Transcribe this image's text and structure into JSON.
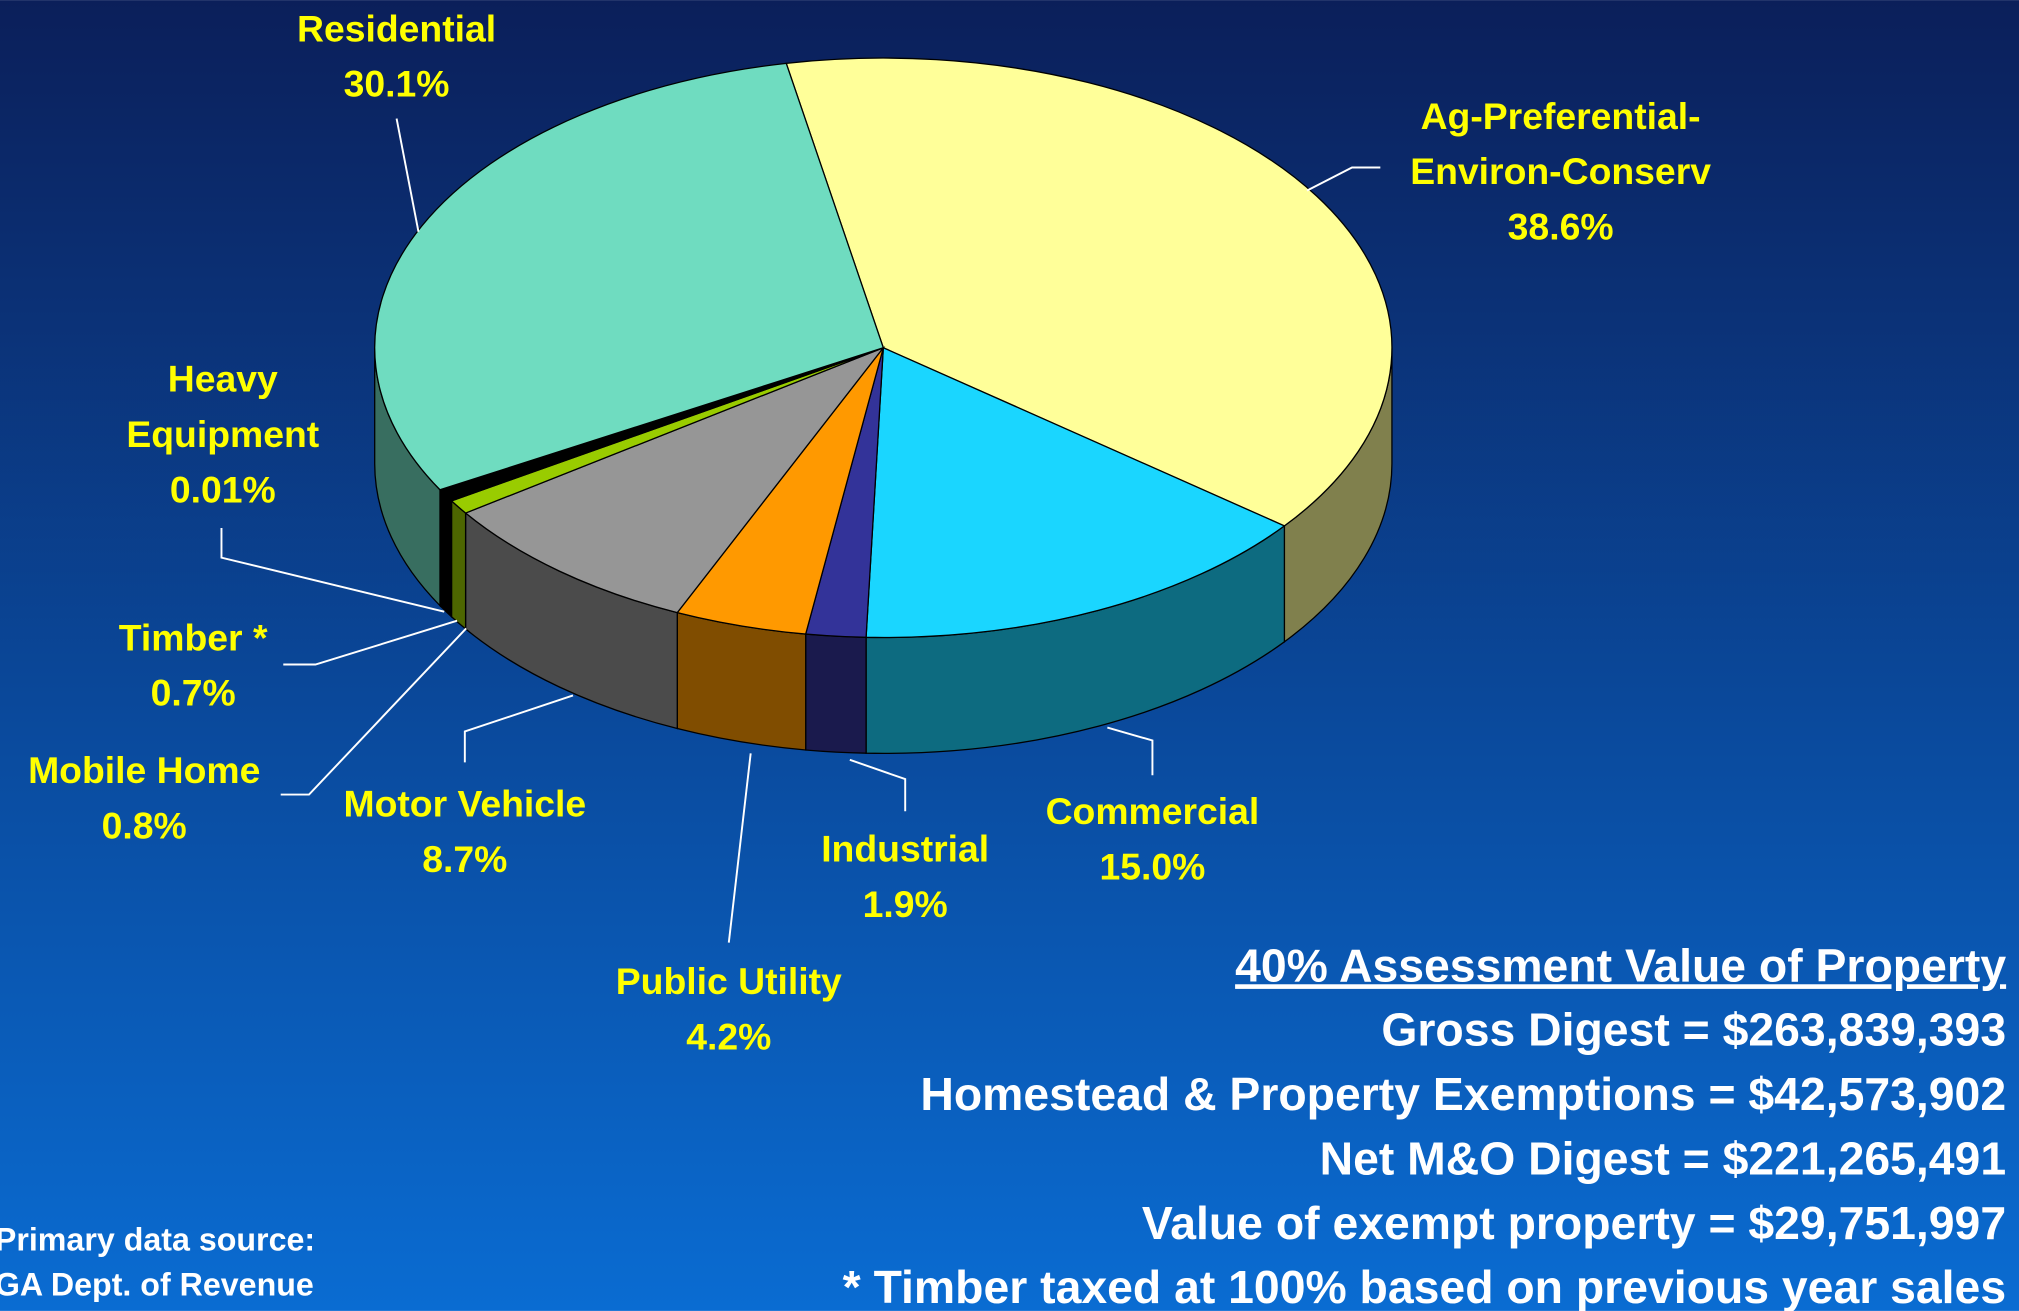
{
  "chart_data": {
    "type": "pie",
    "categories": [
      "Ag-Preferential-\nEnviron-Conserv",
      "Commercial",
      "Industrial",
      "Public Utility",
      "Motor Vehicle",
      "Mobile Home",
      "Timber *",
      "Heavy\nEquipment",
      "Residential"
    ],
    "values": [
      38.6,
      15.0,
      1.9,
      4.2,
      8.7,
      0.8,
      0.7,
      0.01,
      30.1
    ],
    "value_labels": [
      "38.6%",
      "15.0%",
      "1.9%",
      "4.2%",
      "8.7%",
      "0.8%",
      "0.7%",
      "0.01%",
      "30.1%"
    ],
    "colors": [
      "#ffff99",
      "#1ad6ff",
      "#333399",
      "#ff9900",
      "#969696",
      "#99cc00",
      "#000000",
      "#111111",
      "#6fdcc0"
    ],
    "info": {
      "title": "40% Assessment Value of Property",
      "lines": [
        "Gross Digest = $263,839,393",
        "Homestead & Property Exemptions = $42,573,902",
        "Net M&O Digest = $221,265,491",
        "Value of exempt property = $29,751,997",
        "* Timber taxed at 100% based on previous year sales"
      ]
    },
    "source": [
      "Primary data source:",
      "GA Dept. of Revenue"
    ]
  }
}
